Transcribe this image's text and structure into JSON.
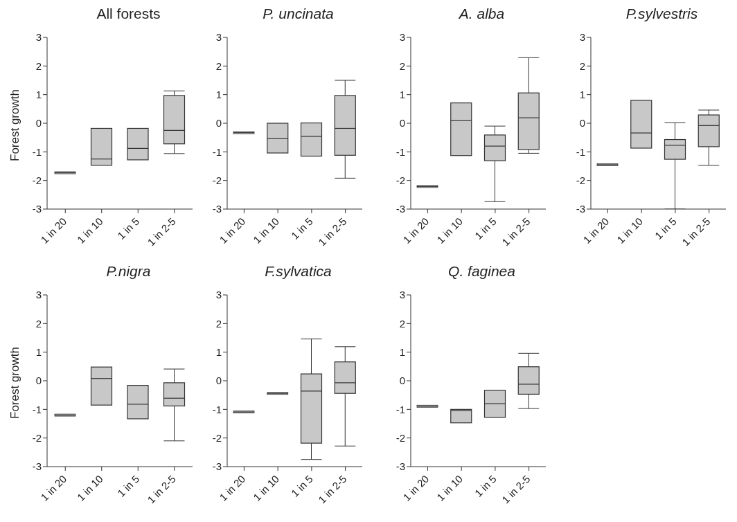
{
  "chart_data": [
    {
      "type": "box",
      "title": "All forests",
      "ylabel": "Forest growth",
      "categories": [
        "1 in 20",
        "1 in 10",
        "1 in 5",
        "1 in 2-5"
      ],
      "color": "#c8c8c8",
      "ylim": [
        -3,
        3
      ],
      "yticks": [
        -3,
        -2,
        -1,
        0,
        1,
        2,
        3
      ],
      "boxes": [
        {
          "low": -1.73,
          "q1": -1.73,
          "median": -1.73,
          "q3": -1.73,
          "high": -1.73
        },
        {
          "low": -1.47,
          "q1": -1.47,
          "median": -1.25,
          "q3": -0.18,
          "high": -0.18
        },
        {
          "low": -1.28,
          "q1": -1.28,
          "median": -0.88,
          "q3": -0.18,
          "high": -0.18
        },
        {
          "low": -1.06,
          "q1": -0.72,
          "median": -0.25,
          "q3": 0.97,
          "high": 1.13
        }
      ]
    },
    {
      "type": "box",
      "title": "P. uncinata",
      "categories": [
        "1 in 20",
        "1 in 10",
        "1 in 5",
        "1 in 2-5"
      ],
      "color": "#c8c8c8",
      "ylim": [
        -3,
        3
      ],
      "yticks": [
        -3,
        -2,
        -1,
        0,
        1,
        2,
        3
      ],
      "boxes": [
        {
          "low": -0.33,
          "q1": -0.33,
          "median": -0.33,
          "q3": -0.33,
          "high": -0.33
        },
        {
          "low": -1.04,
          "q1": -1.04,
          "median": -0.54,
          "q3": 0,
          "high": 0
        },
        {
          "low": -1.15,
          "q1": -1.15,
          "median": -0.46,
          "q3": 0.01,
          "high": 0.01
        },
        {
          "low": -1.92,
          "q1": -1.12,
          "median": -0.18,
          "q3": 0.97,
          "high": 1.5
        }
      ]
    },
    {
      "type": "box",
      "title": "A. alba",
      "categories": [
        "1 in 20",
        "1 in 10",
        "1 in 5",
        "1 in 2-5"
      ],
      "color": "#c8c8c8",
      "ylim": [
        -3,
        3
      ],
      "yticks": [
        -3,
        -2,
        -1,
        0,
        1,
        2,
        3
      ],
      "boxes": [
        {
          "low": -2.21,
          "q1": -2.21,
          "median": -2.21,
          "q3": -2.21,
          "high": -2.21
        },
        {
          "low": -1.13,
          "q1": -1.13,
          "median": 0.09,
          "q3": 0.71,
          "high": 0.71
        },
        {
          "low": -2.74,
          "q1": -1.31,
          "median": -0.8,
          "q3": -0.41,
          "high": -0.1
        },
        {
          "low": -1.05,
          "q1": -0.92,
          "median": 0.19,
          "q3": 1.06,
          "high": 2.29
        }
      ]
    },
    {
      "type": "box",
      "title": "P.sylvestris",
      "categories": [
        "1 in 20",
        "1 in 10",
        "1 in 5",
        "1 in 2-5"
      ],
      "color": "#c8c8c8",
      "ylim": [
        -3,
        3
      ],
      "yticks": [
        -3,
        -2,
        -1,
        0,
        1,
        2,
        3
      ],
      "boxes": [
        {
          "low": -1.45,
          "q1": -1.45,
          "median": -1.45,
          "q3": -1.45,
          "high": -1.45
        },
        {
          "low": -0.87,
          "q1": -0.87,
          "median": -0.34,
          "q3": 0.8,
          "high": 0.8
        },
        {
          "low": -3,
          "q1": -1.26,
          "median": -0.77,
          "q3": -0.57,
          "high": 0.02
        },
        {
          "low": -1.47,
          "q1": -0.82,
          "median": -0.08,
          "q3": 0.29,
          "high": 0.46
        }
      ]
    },
    {
      "type": "box",
      "title": "P.nigra",
      "ylabel": "Forest growth",
      "categories": [
        "1 in 20",
        "1 in 10",
        "1 in 5",
        "1 in 2-5"
      ],
      "color": "#c8c8c8",
      "ylim": [
        -3,
        3
      ],
      "yticks": [
        -3,
        -2,
        -1,
        0,
        1,
        2,
        3
      ],
      "boxes": [
        {
          "low": -1.2,
          "q1": -1.2,
          "median": -1.2,
          "q3": -1.2,
          "high": -1.2
        },
        {
          "low": -0.85,
          "q1": -0.85,
          "median": 0.08,
          "q3": 0.48,
          "high": 0.48
        },
        {
          "low": -1.33,
          "q1": -1.33,
          "median": -0.82,
          "q3": -0.16,
          "high": -0.16
        },
        {
          "low": -2.1,
          "q1": -0.88,
          "median": -0.61,
          "q3": -0.07,
          "high": 0.41
        }
      ]
    },
    {
      "type": "box",
      "title": "F.sylvatica",
      "categories": [
        "1 in 20",
        "1 in 10",
        "1 in 5",
        "1 in 2-5"
      ],
      "color": "#c8c8c8",
      "ylim": [
        -3,
        3
      ],
      "yticks": [
        -3,
        -2,
        -1,
        0,
        1,
        2,
        3
      ],
      "boxes": [
        {
          "low": -1.09,
          "q1": -1.09,
          "median": -1.09,
          "q3": -1.09,
          "high": -1.09
        },
        {
          "low": -0.44,
          "q1": -0.44,
          "median": -0.44,
          "q3": -0.44,
          "high": -0.44
        },
        {
          "low": -2.75,
          "q1": -2.18,
          "median": -0.36,
          "q3": 0.24,
          "high": 1.46
        },
        {
          "low": -2.28,
          "q1": -0.44,
          "median": -0.07,
          "q3": 0.66,
          "high": 1.19
        }
      ]
    },
    {
      "type": "box",
      "title": "Q. faginea",
      "categories": [
        "1 in 20",
        "1 in 10",
        "1 in 5",
        "1 in 2-5"
      ],
      "color": "#c8c8c8",
      "ylim": [
        -3,
        3
      ],
      "yticks": [
        -3,
        -2,
        -1,
        0,
        1,
        2,
        3
      ],
      "boxes": [
        {
          "low": -0.89,
          "q1": -0.89,
          "median": -0.89,
          "q3": -0.89,
          "high": -0.89
        },
        {
          "low": -1.47,
          "q1": -1.47,
          "median": -1.04,
          "q3": -1.0,
          "high": -1.0
        },
        {
          "low": -1.28,
          "q1": -1.28,
          "median": -0.8,
          "q3": -0.33,
          "high": -0.33
        },
        {
          "low": -0.97,
          "q1": -0.47,
          "median": -0.12,
          "q3": 0.49,
          "high": 0.96
        }
      ]
    }
  ]
}
